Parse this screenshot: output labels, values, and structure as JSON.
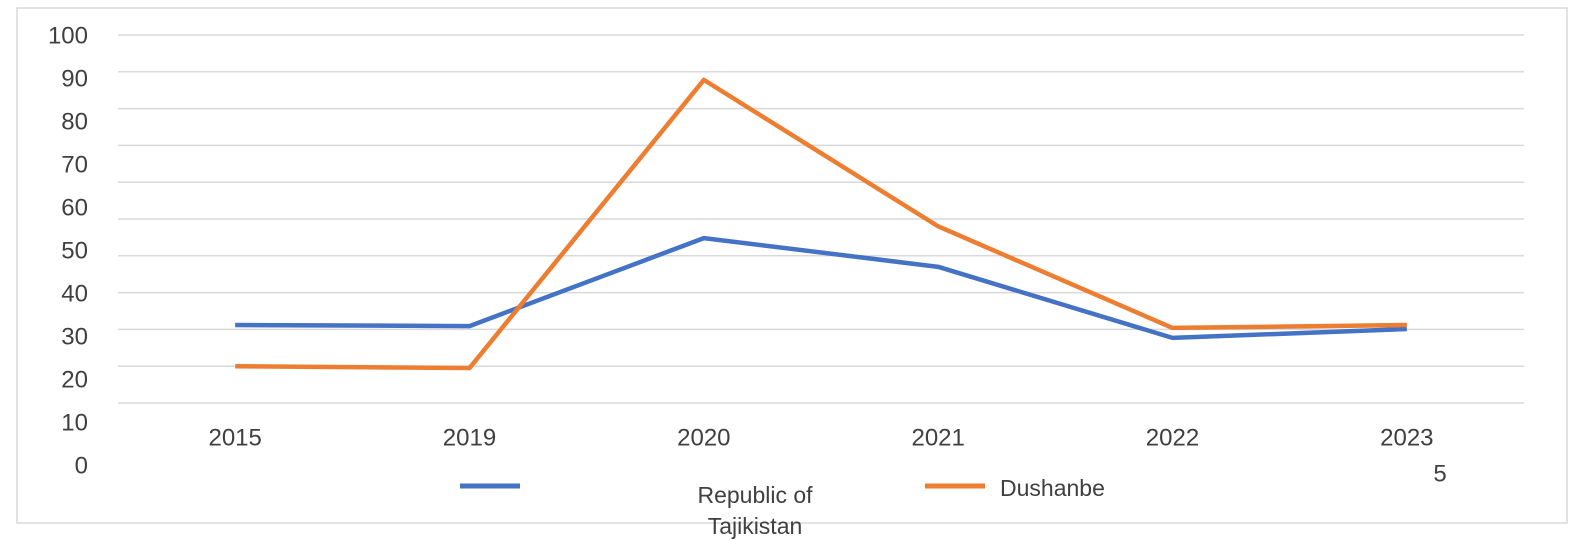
{
  "chart_data": {
    "type": "line",
    "categories": [
      "2015",
      "2019",
      "2020",
      "2021",
      "2022",
      "2023"
    ],
    "series": [
      {
        "name": "Republic of Tajikistan",
        "color": "#4472c4",
        "values": [
          21.2,
          20.9,
          44.8,
          37,
          17.7,
          20.1
        ]
      },
      {
        "name": "Dushanbe",
        "color": "#ed7d31",
        "values": [
          10,
          9.5,
          87.8,
          48,
          20.4,
          21.2
        ]
      }
    ],
    "ylim": [
      0,
      100
    ],
    "yticks": [
      0,
      10,
      20,
      30,
      40,
      50,
      60,
      70,
      80,
      90,
      100
    ],
    "grid": true,
    "legend": "bottom",
    "annotation": "5"
  }
}
